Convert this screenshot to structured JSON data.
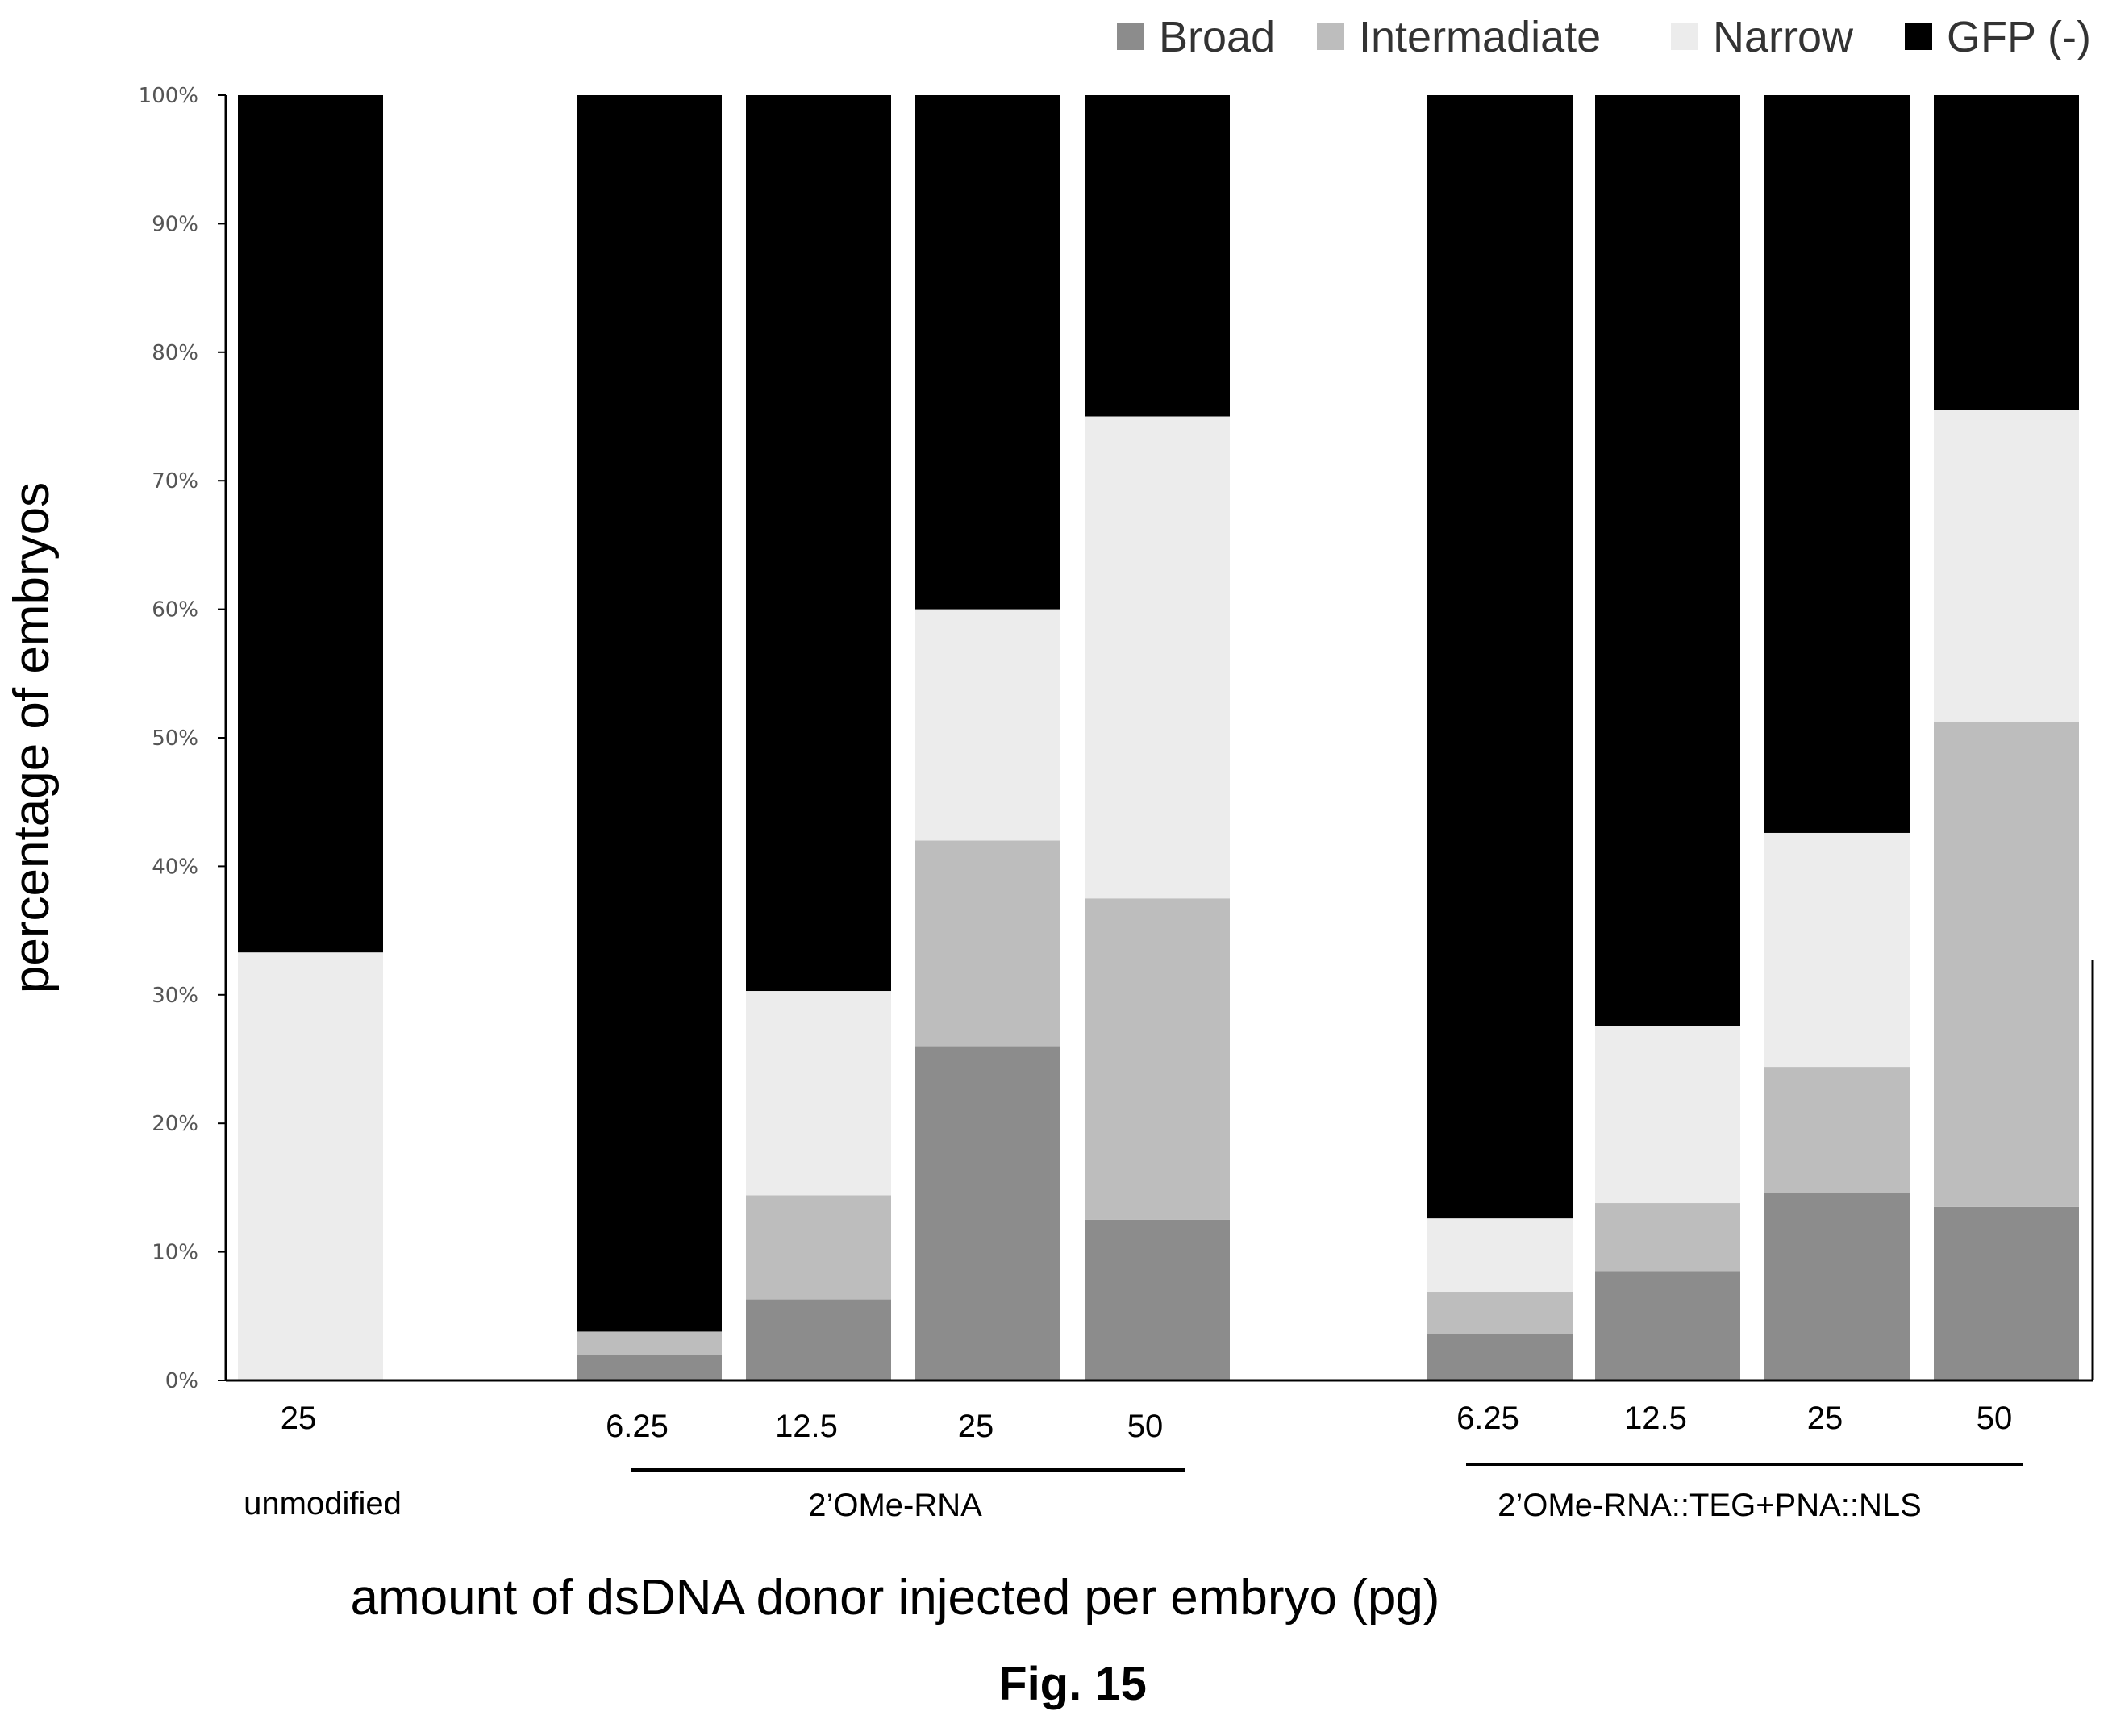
{
  "chart_data": {
    "type": "bar",
    "stacked": true,
    "categories": [
      "25",
      "6.25",
      "12.5",
      "25",
      "50",
      "6.25",
      "12.5",
      "25",
      "50"
    ],
    "groups": [
      {
        "label": "unmodified",
        "indices": [
          0
        ]
      },
      {
        "label": "2’OMe-RNA",
        "indices": [
          1,
          2,
          3,
          4
        ]
      },
      {
        "label": "2’OMe-RNA::TEG+PNA::NLS",
        "indices": [
          5,
          6,
          7,
          8
        ]
      }
    ],
    "series": [
      {
        "name": "Broad",
        "color": "#8c8c8c",
        "values": [
          0,
          2,
          6.3,
          26,
          12.5,
          3.6,
          8.5,
          14.6,
          13.5
        ]
      },
      {
        "name": "Intermadiate",
        "color": "#bdbdbd",
        "values": [
          0,
          1.8,
          8.1,
          16,
          25,
          3.3,
          5.3,
          9.8,
          37.7
        ]
      },
      {
        "name": "Narrow",
        "color": "#ececec",
        "values": [
          33.3,
          0,
          15.9,
          18,
          37.5,
          5.7,
          13.8,
          18.2,
          24.3
        ]
      },
      {
        "name": "GFP (-)",
        "color": "#000000",
        "values": [
          66.7,
          96.2,
          69.7,
          40,
          25,
          87.4,
          72.4,
          57.4,
          24.5
        ]
      }
    ],
    "y_ticks": [
      "0%",
      "10%",
      "20%",
      "30%",
      "40%",
      "50%",
      "60%",
      "70%",
      "80%",
      "90%",
      "100%"
    ],
    "ylim": [
      0,
      100
    ],
    "ylabel": "percentage of embryos",
    "xlabel": "amount of dsDNA donor injected per embryo (pg)",
    "legend_position": "top-right",
    "grid": false
  },
  "figure_label": "Fig. 15"
}
